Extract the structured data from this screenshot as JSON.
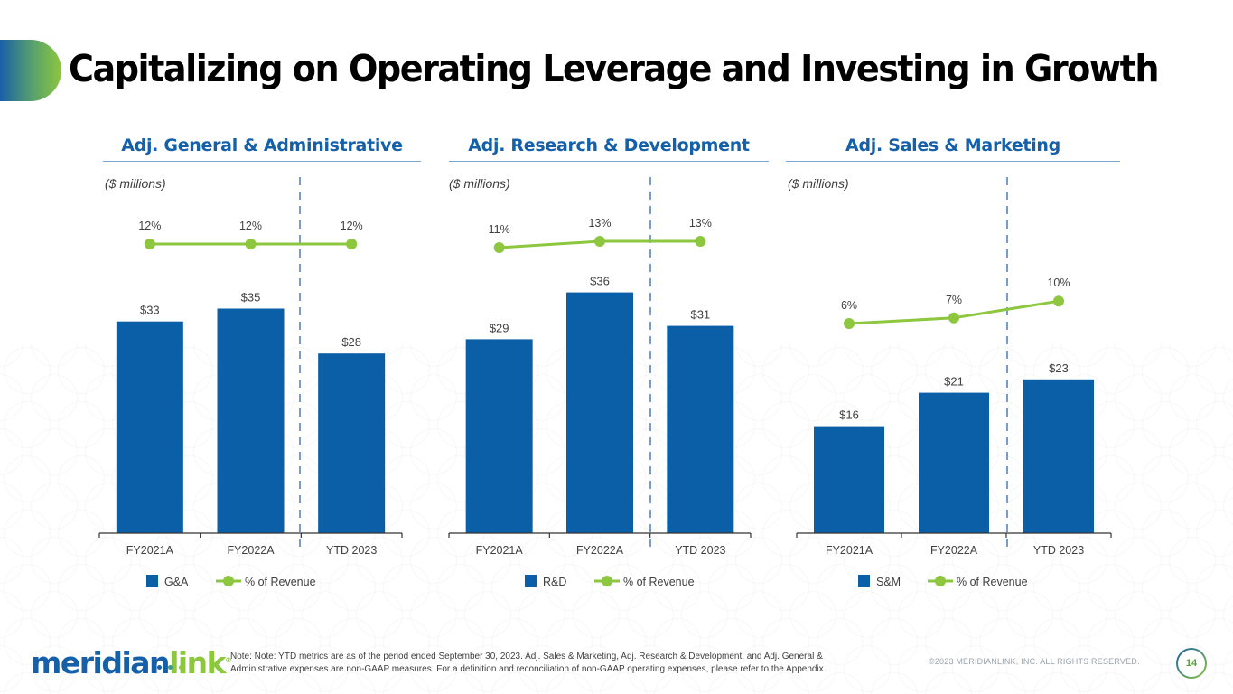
{
  "page": {
    "title": "Capitalizing on Operating Leverage and Investing in Growth",
    "footer_note": "Note: Note: YTD metrics are as of the period ended September 30, 2023. Adj. Sales & Marketing, Adj. Research & Development, and Adj. General & Administrative expenses are non-GAAP measures. For a definition and reconciliation of non-GAAP operating expenses, please refer to the Appendix.",
    "copyright": "©2023 MERIDIANLINK, INC. ALL RIGHTS RESERVED.",
    "page_number": "14",
    "logo": {
      "part1": "meridian",
      "part2": "link",
      "reg": "®"
    }
  },
  "colors": {
    "bar": "#0a5fa6",
    "line": "#8dc63f",
    "heading": "#1660a9",
    "divider": "#7a9cc6"
  },
  "chart_data": [
    {
      "type": "bar",
      "title": "Adj. General & Administrative",
      "units_label": "($ millions)",
      "categories": [
        "FY2021A",
        "FY2022A",
        "YTD 2023"
      ],
      "series": [
        {
          "name": "G&A",
          "kind": "bar",
          "values": [
            33,
            35,
            28
          ],
          "labels": [
            "$33",
            "$35",
            "$28"
          ]
        },
        {
          "name": "% of Revenue",
          "kind": "line",
          "values": [
            12,
            12,
            12
          ],
          "labels": [
            "12%",
            "12%",
            "12%"
          ]
        }
      ],
      "legend": {
        "bar_label": "G&A",
        "line_label": "% of Revenue",
        "placement": "bottom"
      },
      "divider_after_category": 1
    },
    {
      "type": "bar",
      "title": "Adj. Research & Development",
      "units_label": "($ millions)",
      "categories": [
        "FY2021A",
        "FY2022A",
        "YTD 2023"
      ],
      "series": [
        {
          "name": "R&D",
          "kind": "bar",
          "values": [
            29,
            36,
            31
          ],
          "labels": [
            "$29",
            "$36",
            "$31"
          ]
        },
        {
          "name": "% of Revenue",
          "kind": "line",
          "values": [
            11,
            13,
            13
          ],
          "labels": [
            "11%",
            "13%",
            "13%"
          ]
        }
      ],
      "legend": {
        "bar_label": "R&D",
        "line_label": "% of Revenue",
        "placement": "bottom"
      },
      "divider_after_category": 1
    },
    {
      "type": "bar",
      "title": "Adj. Sales & Marketing",
      "units_label": "($ millions)",
      "categories": [
        "FY2021A",
        "FY2022A",
        "YTD 2023"
      ],
      "series": [
        {
          "name": "S&M",
          "kind": "bar",
          "values": [
            16,
            21,
            23
          ],
          "labels": [
            "$16",
            "$21",
            "$23"
          ]
        },
        {
          "name": "% of Revenue",
          "kind": "line",
          "values": [
            6,
            7,
            10
          ],
          "labels": [
            "6%",
            "7%",
            "10%"
          ]
        }
      ],
      "legend": {
        "bar_label": "S&M",
        "line_label": "% of Revenue",
        "placement": "bottom"
      },
      "divider_after_category": 1
    }
  ]
}
